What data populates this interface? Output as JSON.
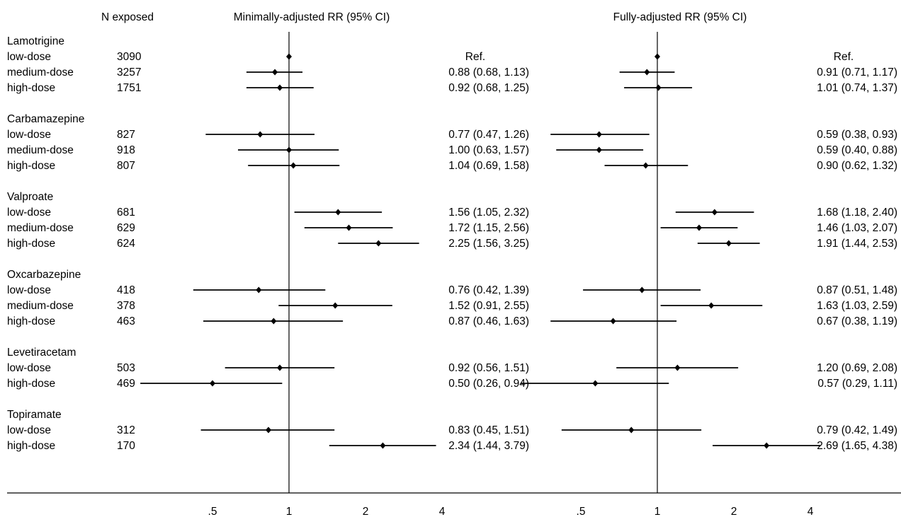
{
  "headers": {
    "n_exposed": "N exposed",
    "minimally": "Minimally-adjusted RR (95% CI)",
    "fully": "Fully-adjusted RR (95% CI)"
  },
  "chart_data": {
    "type": "forest",
    "x_scale": "log",
    "reference_line": 1,
    "xticks": [
      {
        "value": 0.5,
        "label": ".5"
      },
      {
        "value": 1,
        "label": "1"
      },
      {
        "value": 2,
        "label": "2"
      },
      {
        "value": 4,
        "label": "4"
      }
    ],
    "panels": [
      {
        "key": "minimal",
        "title": "Minimally-adjusted RR (95% CI)"
      },
      {
        "key": "full",
        "title": "Fully-adjusted RR (95% CI)"
      }
    ],
    "groups": [
      {
        "name": "Lamotrigine",
        "rows": [
          {
            "dose": "low-dose",
            "n": "3090",
            "minimal": {
              "rr": 1.0,
              "lo": 1.0,
              "hi": 1.0,
              "label": "Ref."
            },
            "full": {
              "rr": 1.0,
              "lo": 1.0,
              "hi": 1.0,
              "label": "Ref."
            }
          },
          {
            "dose": "medium-dose",
            "n": "3257",
            "minimal": {
              "rr": 0.88,
              "lo": 0.68,
              "hi": 1.13,
              "label": "0.88 (0.68, 1.13)"
            },
            "full": {
              "rr": 0.91,
              "lo": 0.71,
              "hi": 1.17,
              "label": "0.91 (0.71, 1.17)"
            }
          },
          {
            "dose": "high-dose",
            "n": "1751",
            "minimal": {
              "rr": 0.92,
              "lo": 0.68,
              "hi": 1.25,
              "label": "0.92 (0.68, 1.25)"
            },
            "full": {
              "rr": 1.01,
              "lo": 0.74,
              "hi": 1.37,
              "label": "1.01 (0.74, 1.37)"
            }
          }
        ]
      },
      {
        "name": "Carbamazepine",
        "rows": [
          {
            "dose": "low-dose",
            "n": "827",
            "minimal": {
              "rr": 0.77,
              "lo": 0.47,
              "hi": 1.26,
              "label": "0.77 (0.47, 1.26)"
            },
            "full": {
              "rr": 0.59,
              "lo": 0.38,
              "hi": 0.93,
              "label": "0.59 (0.38, 0.93)"
            }
          },
          {
            "dose": "medium-dose",
            "n": "918",
            "minimal": {
              "rr": 1.0,
              "lo": 0.63,
              "hi": 1.57,
              "label": "1.00 (0.63, 1.57)"
            },
            "full": {
              "rr": 0.59,
              "lo": 0.4,
              "hi": 0.88,
              "label": "0.59 (0.40, 0.88)"
            }
          },
          {
            "dose": "high-dose",
            "n": "807",
            "minimal": {
              "rr": 1.04,
              "lo": 0.69,
              "hi": 1.58,
              "label": "1.04 (0.69, 1.58)"
            },
            "full": {
              "rr": 0.9,
              "lo": 0.62,
              "hi": 1.32,
              "label": "0.90 (0.62, 1.32)"
            }
          }
        ]
      },
      {
        "name": "Valproate",
        "rows": [
          {
            "dose": "low-dose",
            "n": "681",
            "minimal": {
              "rr": 1.56,
              "lo": 1.05,
              "hi": 2.32,
              "label": "1.56 (1.05, 2.32)"
            },
            "full": {
              "rr": 1.68,
              "lo": 1.18,
              "hi": 2.4,
              "label": "1.68 (1.18, 2.40)"
            }
          },
          {
            "dose": "medium-dose",
            "n": "629",
            "minimal": {
              "rr": 1.72,
              "lo": 1.15,
              "hi": 2.56,
              "label": "1.72 (1.15, 2.56)"
            },
            "full": {
              "rr": 1.46,
              "lo": 1.03,
              "hi": 2.07,
              "label": "1.46 (1.03, 2.07)"
            }
          },
          {
            "dose": "high-dose",
            "n": "624",
            "minimal": {
              "rr": 2.25,
              "lo": 1.56,
              "hi": 3.25,
              "label": "2.25 (1.56, 3.25)"
            },
            "full": {
              "rr": 1.91,
              "lo": 1.44,
              "hi": 2.53,
              "label": "1.91 (1.44, 2.53)"
            }
          }
        ]
      },
      {
        "name": "Oxcarbazepine",
        "rows": [
          {
            "dose": "low-dose",
            "n": "418",
            "minimal": {
              "rr": 0.76,
              "lo": 0.42,
              "hi": 1.39,
              "label": "0.76 (0.42, 1.39)"
            },
            "full": {
              "rr": 0.87,
              "lo": 0.51,
              "hi": 1.48,
              "label": "0.87 (0.51, 1.48)"
            }
          },
          {
            "dose": "medium-dose",
            "n": "378",
            "minimal": {
              "rr": 1.52,
              "lo": 0.91,
              "hi": 2.55,
              "label": "1.52 (0.91, 2.55)"
            },
            "full": {
              "rr": 1.63,
              "lo": 1.03,
              "hi": 2.59,
              "label": "1.63 (1.03, 2.59)"
            }
          },
          {
            "dose": "high-dose",
            "n": "463",
            "minimal": {
              "rr": 0.87,
              "lo": 0.46,
              "hi": 1.63,
              "label": "0.87 (0.46, 1.63)"
            },
            "full": {
              "rr": 0.67,
              "lo": 0.38,
              "hi": 1.19,
              "label": "0.67 (0.38, 1.19)"
            }
          }
        ]
      },
      {
        "name": "Levetiracetam",
        "rows": [
          {
            "dose": "low-dose",
            "n": "503",
            "minimal": {
              "rr": 0.92,
              "lo": 0.56,
              "hi": 1.51,
              "label": "0.92 (0.56, 1.51)"
            },
            "full": {
              "rr": 1.2,
              "lo": 0.69,
              "hi": 2.08,
              "label": "1.20 (0.69, 2.08)"
            }
          },
          {
            "dose": "high-dose",
            "n": "469",
            "minimal": {
              "rr": 0.5,
              "lo": 0.26,
              "hi": 0.94,
              "label": "0.50 (0.26, 0.94)"
            },
            "full": {
              "rr": 0.57,
              "lo": 0.29,
              "hi": 1.11,
              "label": "0.57 (0.29, 1.11)"
            }
          }
        ]
      },
      {
        "name": "Topiramate",
        "rows": [
          {
            "dose": "low-dose",
            "n": "312",
            "minimal": {
              "rr": 0.83,
              "lo": 0.45,
              "hi": 1.51,
              "label": "0.83 (0.45, 1.51)"
            },
            "full": {
              "rr": 0.79,
              "lo": 0.42,
              "hi": 1.49,
              "label": "0.79 (0.42, 1.49)"
            }
          },
          {
            "dose": "high-dose",
            "n": "170",
            "minimal": {
              "rr": 2.34,
              "lo": 1.44,
              "hi": 3.79,
              "label": "2.34 (1.44, 3.79)"
            },
            "full": {
              "rr": 2.69,
              "lo": 1.65,
              "hi": 4.38,
              "label": "2.69 (1.65, 4.38)"
            }
          }
        ]
      }
    ]
  }
}
